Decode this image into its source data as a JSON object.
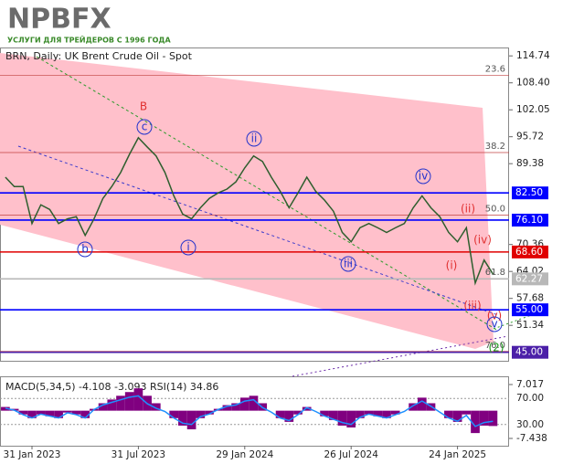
{
  "brand": {
    "name": "NPBFX",
    "tagline": "УСЛУГИ ДЛЯ ТРЕЙДЕРОВ С 1996 ГОДА"
  },
  "chart_data": {
    "type": "line",
    "title": "BRN, Daily:  UK Brent Crude Oil - Spot",
    "color": "#2e5e2e",
    "categories": [
      null,
      null,
      null,
      "31 Jan 2023",
      null,
      null,
      null,
      null,
      null,
      null,
      null,
      null,
      null,
      null,
      null,
      "31 Jul 2023",
      null,
      null,
      null,
      null,
      null,
      null,
      null,
      null,
      null,
      null,
      null,
      "29 Jan 2024",
      null,
      null,
      null,
      null,
      null,
      null,
      null,
      null,
      null,
      null,
      null,
      "26 Jul 2024",
      null,
      null,
      null,
      null,
      null,
      null,
      null,
      null,
      null,
      null,
      null,
      "24 Jan 2025",
      null,
      null,
      null,
      null
    ],
    "values": [
      86.2,
      84.0,
      84.0,
      75.3,
      79.7,
      78.6,
      75.3,
      76.4,
      76.9,
      72.5,
      76.4,
      81.2,
      84.0,
      87.3,
      91.6,
      95.5,
      93.3,
      91.2,
      87.3,
      81.8,
      77.5,
      76.4,
      79.0,
      81.2,
      82.5,
      83.4,
      85.1,
      88.4,
      91.2,
      89.9,
      86.2,
      82.9,
      79.0,
      82.5,
      86.2,
      82.9,
      80.8,
      78.2,
      73.2,
      71.0,
      74.3,
      75.3,
      74.3,
      73.2,
      74.3,
      75.3,
      79.0,
      81.8,
      79.0,
      76.9,
      73.2,
      71.0,
      74.3,
      61.3,
      66.7,
      63.4
    ],
    "ylim": [
      43,
      116.5
    ],
    "yticks": [
      114.74,
      {
        "value": 108.4,
        "label": "108.40"
      },
      102.05,
      95.72,
      89.38,
      70.36,
      64.02,
      57.68,
      51.34
    ],
    "levels": [
      {
        "price": 82.5,
        "label": "82.50",
        "color": "#0000ff"
      },
      {
        "price": 76.1,
        "label": "76.10",
        "color": "#0000ff"
      },
      {
        "price": 68.6,
        "label": "68.60",
        "color": "#e00000"
      },
      {
        "price": 62.27,
        "label": "62.27",
        "color": "#b8b8b8"
      },
      {
        "price": 55,
        "label": "55.00",
        "color": "#0000ff"
      },
      {
        "price": 45,
        "label": "45.00",
        "color": "#4b1fa8"
      }
    ],
    "fib_levels": [
      {
        "price": 110.2,
        "label": "23.6"
      },
      {
        "price": 92.0,
        "label": "38.2"
      },
      {
        "price": 77.3,
        "label": "50.0"
      },
      {
        "price": 62.3,
        "label": "61.8"
      },
      {
        "price": 45.2,
        "label": "76.0"
      }
    ],
    "annotations": [
      {
        "text": "B",
        "color": "#e03030",
        "circle": false
      },
      {
        "text": "c",
        "color": "#2233cc",
        "circle": true
      },
      {
        "text": "ii",
        "color": "#2233cc",
        "circle": true
      },
      {
        "text": "iv",
        "color": "#2233cc",
        "circle": true
      },
      {
        "text": "b",
        "color": "#2233cc",
        "circle": true
      },
      {
        "text": "i",
        "color": "#2233cc",
        "circle": true
      },
      {
        "text": "iii",
        "color": "#2233cc",
        "circle": true
      },
      {
        "text": "(ii)",
        "color": "#e03030",
        "circle": false
      },
      {
        "text": "(iv)",
        "color": "#e03030",
        "circle": false
      },
      {
        "text": "(i)",
        "color": "#e03030",
        "circle": false
      },
      {
        "text": "(iii)",
        "color": "#e03030",
        "circle": false
      },
      {
        "text": "(v)",
        "color": "#e03030",
        "circle": false
      },
      {
        "text": "v",
        "color": "#2233cc",
        "circle": true
      },
      {
        "text": "(2)",
        "color": "#1a9a1a",
        "circle": false
      }
    ],
    "indicator": {
      "title": "MACD(5,34,5) -4.108 -3.093 RSI(14) 34.86",
      "macd": {
        "color": "#800080",
        "values": [
          1,
          0.5,
          -1,
          -2,
          -1,
          -1.5,
          -2,
          -0.5,
          -1,
          -2,
          0.5,
          2,
          3,
          4,
          5,
          6,
          4,
          2,
          0,
          -2,
          -4,
          -5,
          -2,
          -1,
          0.5,
          1.5,
          2,
          3.5,
          4,
          2,
          0,
          -2,
          -3,
          -1,
          1,
          0,
          -1.5,
          -2.5,
          -4,
          -4.5,
          -2,
          -1,
          -1.5,
          -2,
          -1,
          0,
          2,
          3.5,
          2,
          0,
          -2,
          -3,
          -1,
          -6,
          -4,
          -4.108
        ]
      },
      "rsi": {
        "color": "#1e90ff",
        "values": [
          55,
          52,
          45,
          40,
          46,
          43,
          40,
          48,
          45,
          40,
          53,
          60,
          64,
          68,
          72,
          74,
          62,
          55,
          50,
          40,
          32,
          30,
          42,
          46,
          53,
          58,
          60,
          66,
          68,
          56,
          49,
          40,
          36,
          45,
          56,
          50,
          43,
          38,
          33,
          30,
          41,
          46,
          43,
          40,
          45,
          50,
          59,
          66,
          58,
          49,
          40,
          35,
          44,
          27,
          33,
          34.86
        ]
      },
      "ylim": [
        -7.438,
        7.017
      ],
      "yticks": [
        7.017,
        -7.438
      ],
      "y2lim": [
        8.6,
        91.4
      ],
      "y2ticks": [
        {
          "value": 70,
          "label": "70.00"
        },
        {
          "value": 30,
          "label": "30.00"
        }
      ]
    }
  }
}
